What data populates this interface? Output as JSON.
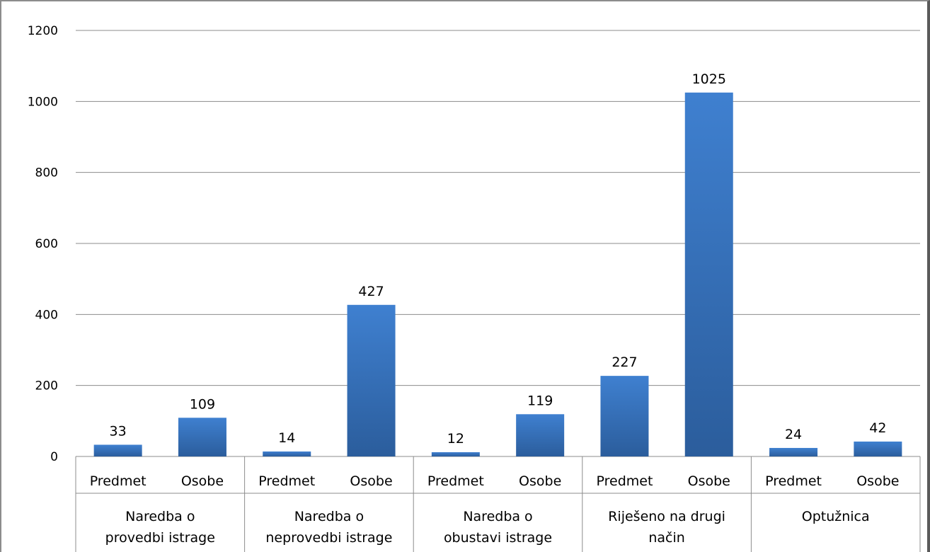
{
  "chart_data": {
    "type": "bar",
    "title": "",
    "xlabel": "",
    "ylabel": "",
    "ylim": [
      0,
      1200
    ],
    "yticks": [
      0,
      200,
      400,
      600,
      800,
      1000,
      1200
    ],
    "grid": true,
    "bar_color": "#3a77c4",
    "groups": [
      {
        "label_lines": [
          "Naredba o",
          "provedbi istrage"
        ]
      },
      {
        "label_lines": [
          "Naredba o",
          "neprovedbi istrage"
        ]
      },
      {
        "label_lines": [
          "Naredba o",
          "obustavi istrage"
        ]
      },
      {
        "label_lines": [
          "Riješeno na drugi",
          "način"
        ]
      },
      {
        "label_lines": [
          "Optužnica"
        ]
      }
    ],
    "bars": [
      {
        "group": 0,
        "sublabel": "Predmet",
        "value": 33
      },
      {
        "group": 0,
        "sublabel": "Osobe",
        "value": 109
      },
      {
        "group": 1,
        "sublabel": "Predmet",
        "value": 14
      },
      {
        "group": 1,
        "sublabel": "Osobe",
        "value": 427
      },
      {
        "group": 2,
        "sublabel": "Predmet",
        "value": 12
      },
      {
        "group": 2,
        "sublabel": "Osobe",
        "value": 119
      },
      {
        "group": 3,
        "sublabel": "Predmet",
        "value": 227
      },
      {
        "group": 3,
        "sublabel": "Osobe",
        "value": 1025
      },
      {
        "group": 4,
        "sublabel": "Predmet",
        "value": 24
      },
      {
        "group": 4,
        "sublabel": "Osobe",
        "value": 42
      }
    ]
  }
}
